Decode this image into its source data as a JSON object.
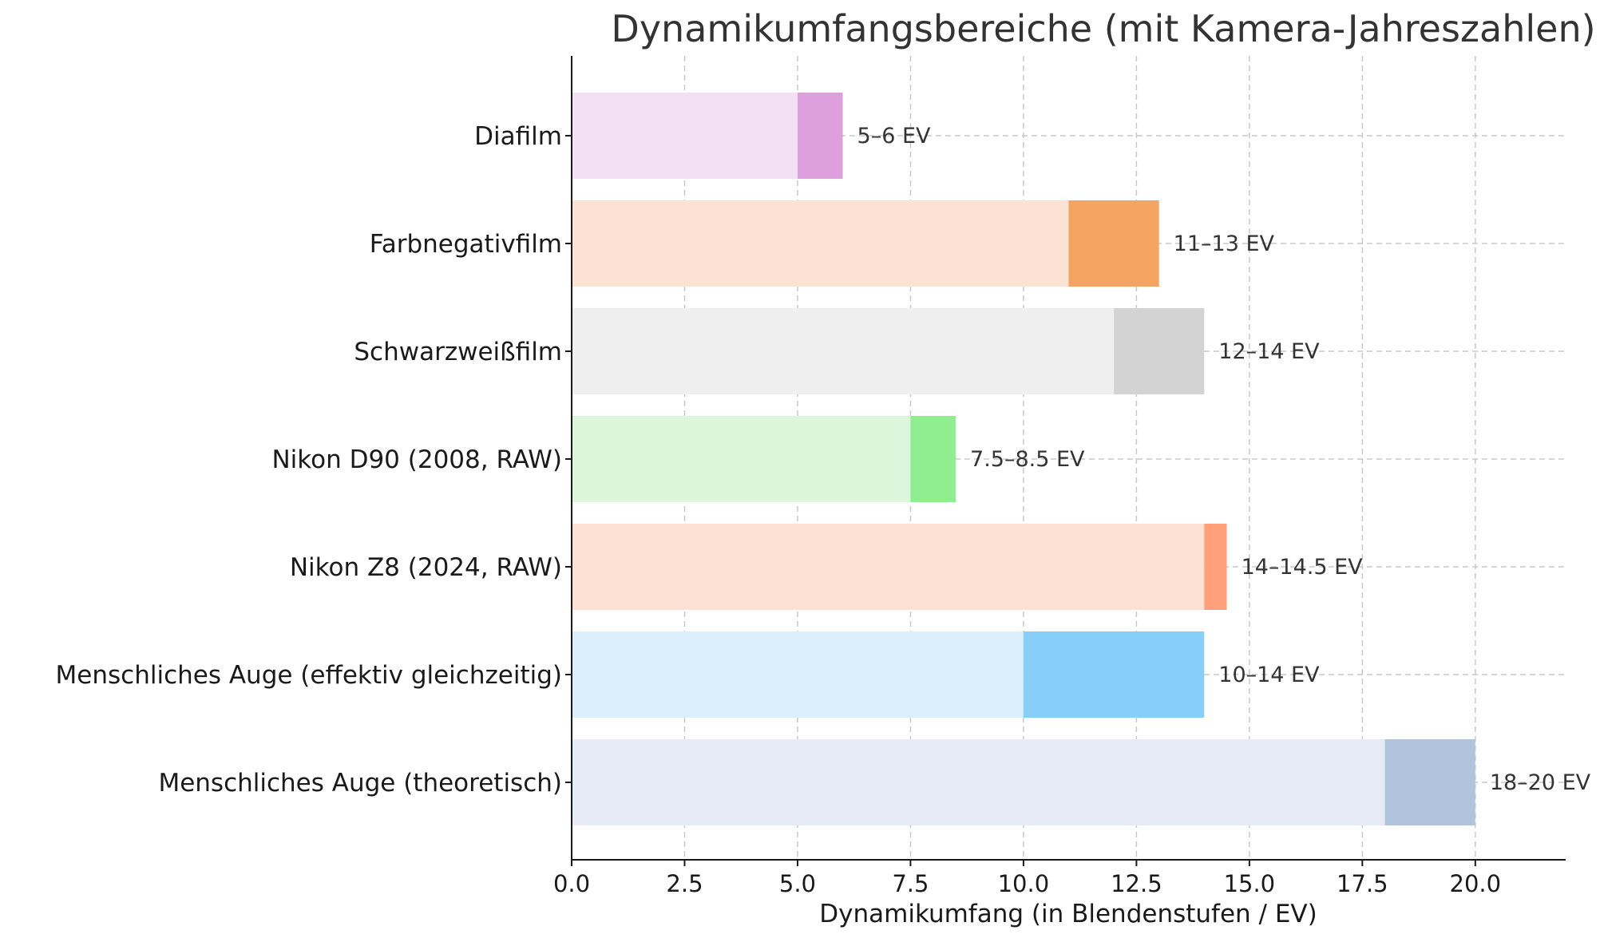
{
  "chart_data": {
    "type": "bar",
    "orientation": "horizontal",
    "title": "Dynamikumfangsbereiche (mit Kamera-Jahreszahlen)",
    "xlabel": "Dynamikumfang (in Blendenstufen / EV)",
    "ylabel": "",
    "xlim": [
      0,
      22
    ],
    "xticks": [
      0,
      2.5,
      5,
      7.5,
      10,
      12.5,
      15,
      17.5,
      20
    ],
    "xtick_labels": [
      "0.0",
      "2.5",
      "5.0",
      "7.5",
      "10.0",
      "12.5",
      "15.0",
      "17.5",
      "20.0"
    ],
    "grid": true,
    "categories": [
      "Diafilm",
      "Farbnegativfilm",
      "Schwarzweißfilm",
      "Nikon D90 (2008, RAW)",
      "Nikon Z8 (2024, RAW)",
      "Menschliches Auge (effektiv gleichzeitig)",
      "Menschliches Auge (theoretisch)"
    ],
    "series": [
      {
        "name": "Minimum",
        "values": [
          5,
          11,
          12,
          7.5,
          14,
          10,
          18
        ],
        "colors": [
          "#f3e0f3",
          "#fbe2d2",
          "#efefef",
          "#dcf6dc",
          "#fde0d4",
          "#daeefb",
          "#e6ebf5"
        ]
      },
      {
        "name": "Spanne bis Maximum",
        "start": [
          5,
          11,
          12,
          7.5,
          14,
          10,
          18
        ],
        "end": [
          6,
          13,
          14,
          8.5,
          14.5,
          14,
          20
        ],
        "colors": [
          "#dda0dd",
          "#f4a460",
          "#d3d3d3",
          "#90ee90",
          "#ffa07a",
          "#87cefa",
          "#b0c4de"
        ]
      }
    ],
    "value_labels": [
      "5–6 EV",
      "11–13 EV",
      "12–14 EV",
      "7.5–8.5 EV",
      "14–14.5 EV",
      "10–14 EV",
      "18–20 EV"
    ]
  }
}
